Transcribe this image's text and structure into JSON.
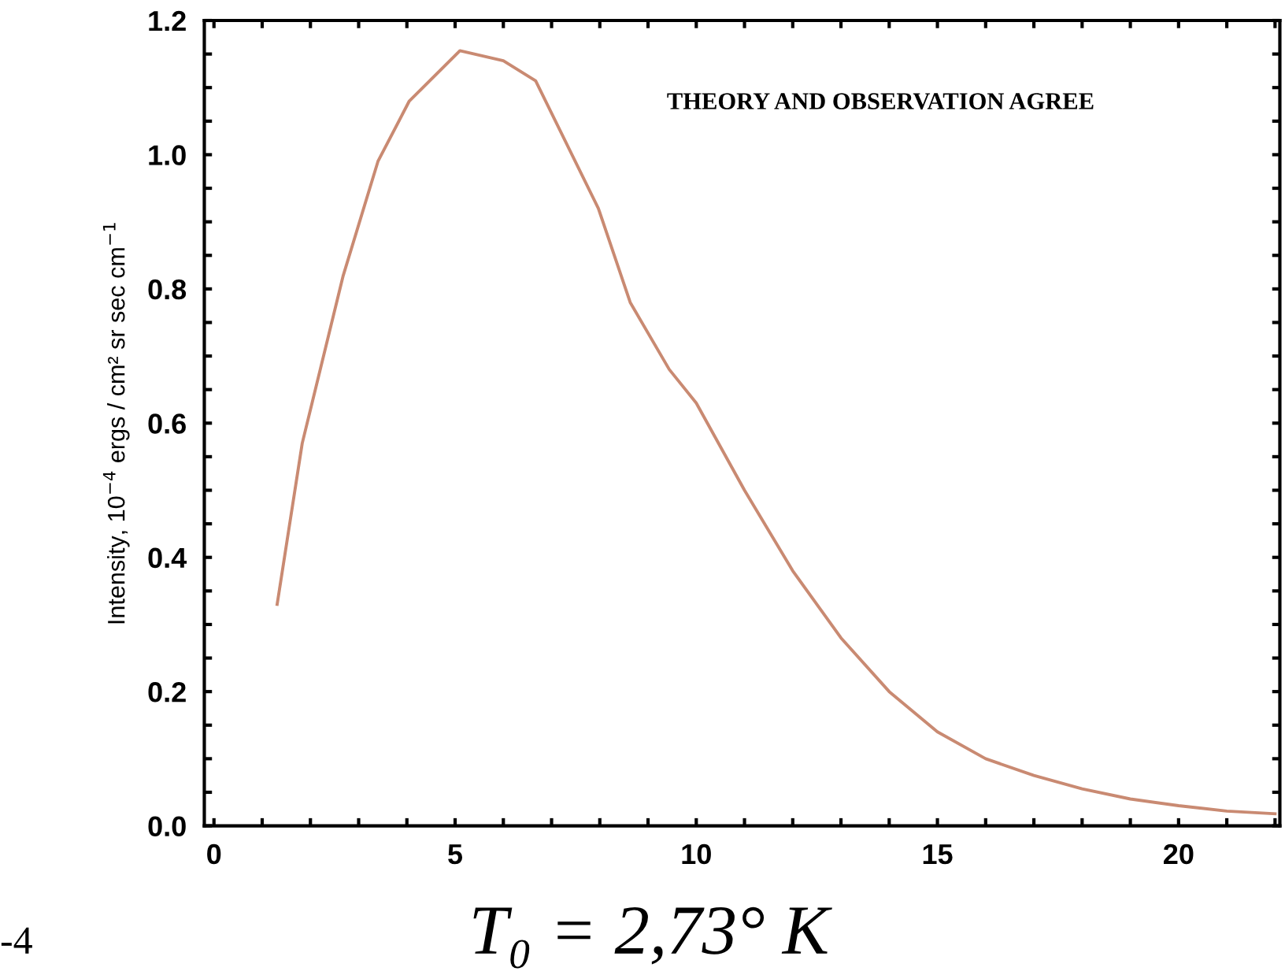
{
  "chart_data": {
    "type": "line",
    "ylabel": "Intensity, 10$^{−4}$ ergs / cm² sr sec cm$^{−1}$",
    "annotations": [
      "THEORY AND OBSERVATION AGREE",
      "T₀ = 2,73° K",
      "-4"
    ],
    "x": [
      1.31,
      1.83,
      2.68,
      3.4,
      4.05,
      5.1,
      6.0,
      6.67,
      7.97,
      8.63,
      9.44,
      10,
      11,
      12,
      13,
      14,
      15,
      16,
      17,
      18,
      19,
      20,
      21,
      22
    ],
    "series": [
      {
        "color": "#c98a72",
        "values": [
          0.33,
          0.57,
          0.82,
          0.99,
          1.08,
          1.155,
          1.14,
          1.11,
          0.92,
          0.78,
          0.68,
          0.63,
          0.5,
          0.38,
          0.28,
          0.2,
          0.14,
          0.1,
          0.075,
          0.055,
          0.04,
          0.03,
          0.022,
          0.018
        ]
      }
    ],
    "xlim": [
      -0.2,
      22.1
    ],
    "ylim": [
      0,
      1.2
    ],
    "xticks": [
      0,
      {
        "value": 1,
        "label": null
      },
      {
        "value": 2,
        "label": null
      },
      {
        "value": 3,
        "label": null
      },
      {
        "value": 4,
        "label": null
      },
      5,
      {
        "value": 6,
        "label": null
      },
      {
        "value": 7,
        "label": null
      },
      {
        "value": 8,
        "label": null
      },
      {
        "value": 9,
        "label": null
      },
      10,
      {
        "value": 11,
        "label": null
      },
      {
        "value": 12,
        "label": null
      },
      {
        "value": 13,
        "label": null
      },
      {
        "value": 14,
        "label": null
      },
      15,
      {
        "value": 16,
        "label": null
      },
      {
        "value": 17,
        "label": null
      },
      {
        "value": 18,
        "label": null
      },
      {
        "value": 19,
        "label": null
      },
      20,
      {
        "value": 21,
        "label": null
      },
      {
        "value": 22,
        "label": null
      }
    ],
    "yticks": [
      {
        "value": 0,
        "label": "0.0"
      },
      {
        "value": 0.05,
        "label": null
      },
      {
        "value": 0.1,
        "label": null
      },
      {
        "value": 0.15,
        "label": null
      },
      {
        "value": 0.2,
        "label": "0.2"
      },
      {
        "value": 0.25,
        "label": null
      },
      {
        "value": 0.3,
        "label": null
      },
      {
        "value": 0.35,
        "label": null
      },
      {
        "value": 0.4,
        "label": "0.4"
      },
      {
        "value": 0.45,
        "label": null
      },
      {
        "value": 0.5,
        "label": null
      },
      {
        "value": 0.55,
        "label": null
      },
      {
        "value": 0.6,
        "label": "0.6"
      },
      {
        "value": 0.65,
        "label": null
      },
      {
        "value": 0.7,
        "label": null
      },
      {
        "value": 0.75,
        "label": null
      },
      {
        "value": 0.8,
        "label": "0.8"
      },
      {
        "value": 0.85,
        "label": null
      },
      {
        "value": 0.9,
        "label": null
      },
      {
        "value": 0.95,
        "label": null
      },
      {
        "value": 1.0,
        "label": "1.0"
      },
      {
        "value": 1.05,
        "label": null
      },
      {
        "value": 1.1,
        "label": null
      },
      {
        "value": 1.15,
        "label": null
      },
      {
        "value": 1.2,
        "label": "1.2"
      }
    ],
    "grid": false,
    "legend": false,
    "marker": "none",
    "line_style": "solid"
  }
}
